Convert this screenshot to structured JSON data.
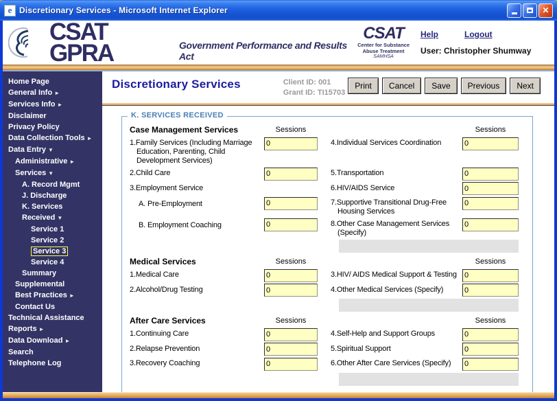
{
  "window": {
    "title": "Discretionary Services - Microsoft Internet Explorer"
  },
  "icons": {
    "minimize": "",
    "maximize": "",
    "close": "✕",
    "arrow_right": "►",
    "arrow_down": "▼",
    "ie_glyph": "e"
  },
  "colors": {
    "sidebar_bg": "#333366",
    "xp_border_blue": "#0E39D4",
    "accent_orange": "#E2953D",
    "field_yellow": "#FFFFC4",
    "fieldset_border": "#7BA6CC",
    "page_title_blue": "#1C1CA0"
  },
  "header": {
    "app_title": "CSAT GPRA",
    "app_subtitle": "Government Performance and Results Act",
    "csat_logo": {
      "big": "CSAT",
      "line1": "Center for Substance",
      "line2": "Abuse Treatment",
      "line3": "SAMHSA"
    },
    "help_link": "Help",
    "logout_link": "Logout",
    "user": "User: Christopher Shumway"
  },
  "sidebar": {
    "items": [
      {
        "label": "Home Page",
        "indent": 0
      },
      {
        "label": "General Info",
        "indent": 0,
        "arrow": "right"
      },
      {
        "label": "Services Info",
        "indent": 0,
        "arrow": "right"
      },
      {
        "label": "Disclaimer",
        "indent": 0
      },
      {
        "label": "Privacy Policy",
        "indent": 0
      },
      {
        "label": "Data Collection Tools",
        "indent": 0,
        "arrow": "right"
      },
      {
        "label": "Data Entry",
        "indent": 0,
        "arrow": "down"
      },
      {
        "label": "Administrative",
        "indent": 1,
        "arrow": "right"
      },
      {
        "label": "Services",
        "indent": 1,
        "arrow": "down"
      },
      {
        "label": "A. Record Mgmt",
        "indent": 2
      },
      {
        "label": "J. Discharge",
        "indent": 2
      },
      {
        "label": "K. Services Received",
        "indent": 2,
        "arrow": "down"
      },
      {
        "label": "Service 1",
        "indent": 3
      },
      {
        "label": "Service 2",
        "indent": 3
      },
      {
        "label": "Service 3",
        "indent": 3,
        "selected": true
      },
      {
        "label": "Service 4",
        "indent": 3
      },
      {
        "label": "Summary",
        "indent": 2
      },
      {
        "label": "Supplemental",
        "indent": 1
      },
      {
        "label": "Best Practices",
        "indent": 1,
        "arrow": "right"
      },
      {
        "label": "Contact Us",
        "indent": 1
      },
      {
        "label": "Technical Assistance",
        "indent": 0
      },
      {
        "label": "Reports",
        "indent": 0,
        "arrow": "right"
      },
      {
        "label": "Data Download",
        "indent": 0,
        "arrow": "right"
      },
      {
        "label": "Search",
        "indent": 0
      },
      {
        "label": "Telephone Log",
        "indent": 0
      }
    ]
  },
  "content": {
    "page_title": "Discretionary Services",
    "client_id": "Client ID: 001",
    "grant_id": "Grant ID: TI15703",
    "buttons": [
      "Print",
      "Cancel",
      "Save",
      "Previous",
      "Next"
    ],
    "fieldset_legend": "K. SERVICES RECEIVED",
    "sessions_header": "Sessions",
    "sections": [
      {
        "title": "Case Management Services",
        "rows": [
          {
            "left": "1.Family Services (Including Marriage Education, Parenting, Child Development Services)",
            "left_input": "0",
            "right": "4.Individual Services Coordination",
            "right_input": "0"
          },
          {
            "left": "2.Child Care",
            "left_input": "0",
            "right": "5.Transportation",
            "right_input": "0"
          },
          {
            "left": "3.Employment Service",
            "left_input": null,
            "right": "6.HIV/AIDS Service",
            "right_input": "0"
          },
          {
            "left": "A. Pre-Employment",
            "left_sub": true,
            "left_input": "0",
            "right": "7.Supportive Transitional Drug-Free Housing Services",
            "right_input": "0"
          },
          {
            "left": "B. Employment Coaching",
            "left_sub": true,
            "left_input": "0",
            "right": "8.Other Case Management Services (Specify)",
            "right_input": "0"
          },
          {
            "specify": true
          }
        ]
      },
      {
        "title": "Medical Services",
        "rows": [
          {
            "left": "1.Medical Care",
            "left_input": "0",
            "right": "3.HIV/ AIDS Medical Support & Testing",
            "right_input": "0"
          },
          {
            "left": "2.Alcohol/Drug Testing",
            "left_input": "0",
            "right": "4.Other Medical Services (Specify)",
            "right_input": "0"
          },
          {
            "specify": true
          }
        ]
      },
      {
        "title": "After Care Services",
        "rows": [
          {
            "left": "1.Continuing Care",
            "left_input": "0",
            "right": "4.Self-Help and Support Groups",
            "right_input": "0"
          },
          {
            "left": "2.Relapse Prevention",
            "left_input": "0",
            "right": "5.Spiritual Support",
            "right_input": "0"
          },
          {
            "left": "3.Recovery Coaching",
            "left_input": "0",
            "right": "6.Other After Care Services (Specify)",
            "right_input": "0"
          },
          {
            "specify": true
          }
        ]
      }
    ]
  }
}
